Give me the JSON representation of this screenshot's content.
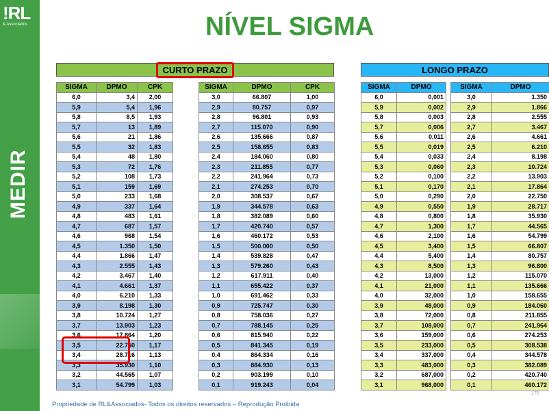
{
  "logo": {
    "main": "!RL",
    "sub": "& Associados"
  },
  "side_label": "MEDIR",
  "title": "NÍVEL SIGMA",
  "headers": {
    "curto": "CURTO PRAZO",
    "longo": "LONGO PRAZO"
  },
  "columns": {
    "sigma": "SIGMA",
    "dpmo": "DPMO",
    "cpk": "CPK"
  },
  "curto_left": [
    [
      "6,0",
      "3,4",
      "2,00"
    ],
    [
      "5,9",
      "5,4",
      "1,96"
    ],
    [
      "5,8",
      "8,5",
      "1,93"
    ],
    [
      "5,7",
      "13",
      "1,89"
    ],
    [
      "5,6",
      "21",
      "1,86"
    ],
    [
      "5,5",
      "32",
      "1,83"
    ],
    [
      "5,4",
      "48",
      "1,80"
    ],
    [
      "5,3",
      "72",
      "1,76"
    ],
    [
      "5,2",
      "108",
      "1,73"
    ],
    [
      "5,1",
      "159",
      "1,69"
    ],
    [
      "5,0",
      "233",
      "1,68"
    ],
    [
      "4,9",
      "337",
      "1,64"
    ],
    [
      "4,8",
      "483",
      "1,61"
    ],
    [
      "4,7",
      "687",
      "1,57"
    ],
    [
      "4,6",
      "968",
      "1,54"
    ],
    [
      "4,5",
      "1.350",
      "1,50"
    ],
    [
      "4,4",
      "1.866",
      "1,47"
    ],
    [
      "4,3",
      "2.555",
      "1,43"
    ],
    [
      "4,2",
      "3.467",
      "1,40"
    ],
    [
      "4,1",
      "4.661",
      "1,37"
    ],
    [
      "4,0",
      "6.210",
      "1,33"
    ],
    [
      "3,9",
      "8.198",
      "1,30"
    ],
    [
      "3,8",
      "10.724",
      "1,27"
    ],
    [
      "3,7",
      "13.903",
      "1,23"
    ],
    [
      "3,6",
      "17.864",
      "1,20"
    ],
    [
      "3,5",
      "22.750",
      "1,17"
    ],
    [
      "3,4",
      "28.716",
      "1,13"
    ],
    [
      "3,3",
      "35.930",
      "1,10"
    ],
    [
      "3,2",
      "44.565",
      "1,07"
    ],
    [
      "3,1",
      "54.799",
      "1,03"
    ]
  ],
  "curto_right": [
    [
      "3,0",
      "66.807",
      "1,00"
    ],
    [
      "2,9",
      "80.757",
      "0,97"
    ],
    [
      "2,8",
      "96.801",
      "0,93"
    ],
    [
      "2,7",
      "115.070",
      "0,90"
    ],
    [
      "2,6",
      "135.666",
      "0,87"
    ],
    [
      "2,5",
      "158.655",
      "0,83"
    ],
    [
      "2,4",
      "184.060",
      "0,80"
    ],
    [
      "2,3",
      "211.855",
      "0,77"
    ],
    [
      "2,2",
      "241.964",
      "0,73"
    ],
    [
      "2,1",
      "274.253",
      "0,70"
    ],
    [
      "2,0",
      "308.537",
      "0,67"
    ],
    [
      "1,9",
      "344.578",
      "0,63"
    ],
    [
      "1,8",
      "382.089",
      "0,60"
    ],
    [
      "1,7",
      "420.740",
      "0,57"
    ],
    [
      "1,6",
      "460.172",
      "0,53"
    ],
    [
      "1,5",
      "500.000",
      "0,50"
    ],
    [
      "1,4",
      "539.828",
      "0,47"
    ],
    [
      "1,3",
      "579.260",
      "0,43"
    ],
    [
      "1,2",
      "617.911",
      "0,40"
    ],
    [
      "1,1",
      "655.422",
      "0,37"
    ],
    [
      "1,0",
      "691.462",
      "0,33"
    ],
    [
      "0,9",
      "725.747",
      "0,30"
    ],
    [
      "0,8",
      "758.036",
      "0,27"
    ],
    [
      "0,7",
      "788.145",
      "0,25"
    ],
    [
      "0,6",
      "815.940",
      "0,22"
    ],
    [
      "0,5",
      "841.345",
      "0,19"
    ],
    [
      "0,4",
      "864.334",
      "0,16"
    ],
    [
      "0,3",
      "884.930",
      "0,13"
    ],
    [
      "0,2",
      "903.199",
      "0,10"
    ],
    [
      "0,1",
      "919.243",
      "0,04"
    ]
  ],
  "longo_left": [
    [
      "6,0",
      "0,001"
    ],
    [
      "5,9",
      "0,002"
    ],
    [
      "5,8",
      "0,003"
    ],
    [
      "5,7",
      "0,006"
    ],
    [
      "5,6",
      "0,011"
    ],
    [
      "5,5",
      "0,019"
    ],
    [
      "5,4",
      "0,033"
    ],
    [
      "5,3",
      "0,060"
    ],
    [
      "5,2",
      "0,100"
    ],
    [
      "5,1",
      "0,170"
    ],
    [
      "5,0",
      "0,290"
    ],
    [
      "4,9",
      "0,550"
    ],
    [
      "4,8",
      "0,800"
    ],
    [
      "4,7",
      "1,300"
    ],
    [
      "4,6",
      "2,100"
    ],
    [
      "4,5",
      "3,400"
    ],
    [
      "4,4",
      "5,400"
    ],
    [
      "4,3",
      "8,500"
    ],
    [
      "4,2",
      "13,000"
    ],
    [
      "4,1",
      "21,000"
    ],
    [
      "4,0",
      "32,000"
    ],
    [
      "3,9",
      "48,000"
    ],
    [
      "3,8",
      "72,000"
    ],
    [
      "3,7",
      "108,000"
    ],
    [
      "3,6",
      "159,000"
    ],
    [
      "3,5",
      "233,000"
    ],
    [
      "3,4",
      "337,000"
    ],
    [
      "3,3",
      "483,000"
    ],
    [
      "3,2",
      "687,000"
    ],
    [
      "3,1",
      "968,000"
    ]
  ],
  "longo_right": [
    [
      "3,0",
      "1.350"
    ],
    [
      "2,9",
      "1.866"
    ],
    [
      "2,8",
      "2.555"
    ],
    [
      "2,7",
      "3.467"
    ],
    [
      "2,6",
      "4.661"
    ],
    [
      "2,5",
      "6.210"
    ],
    [
      "2,4",
      "8.198"
    ],
    [
      "2,3",
      "10.724"
    ],
    [
      "2,2",
      "13.903"
    ],
    [
      "2,1",
      "17.864"
    ],
    [
      "2,0",
      "22.750"
    ],
    [
      "1,9",
      "28.717"
    ],
    [
      "1,8",
      "35.930"
    ],
    [
      "1,7",
      "44.565"
    ],
    [
      "1,6",
      "54.799"
    ],
    [
      "1,5",
      "66.807"
    ],
    [
      "1,4",
      "80.757"
    ],
    [
      "1,3",
      "96.800"
    ],
    [
      "1,2",
      "115.070"
    ],
    [
      "1,1",
      "135.666"
    ],
    [
      "1,0",
      "158.655"
    ],
    [
      "0,9",
      "184.060"
    ],
    [
      "0,8",
      "211.855"
    ],
    [
      "0,7",
      "241.964"
    ],
    [
      "0,6",
      "274.253"
    ],
    [
      "0,5",
      "308.538"
    ],
    [
      "0,4",
      "344.578"
    ],
    [
      "0,3",
      "382.089"
    ],
    [
      "0,2",
      "420.740"
    ],
    [
      "0,1",
      "460.172"
    ]
  ],
  "footer": "Propriedade de RL&Associados- Todos os direitos reservados – Reprodução Proibida",
  "page_number": "175",
  "colors": {
    "green": "#8bc34a",
    "blue": "#29b6f6",
    "row_blue": "#b3cbe9",
    "row_yellow": "#e6ee9c",
    "highlight": "#e00000"
  }
}
